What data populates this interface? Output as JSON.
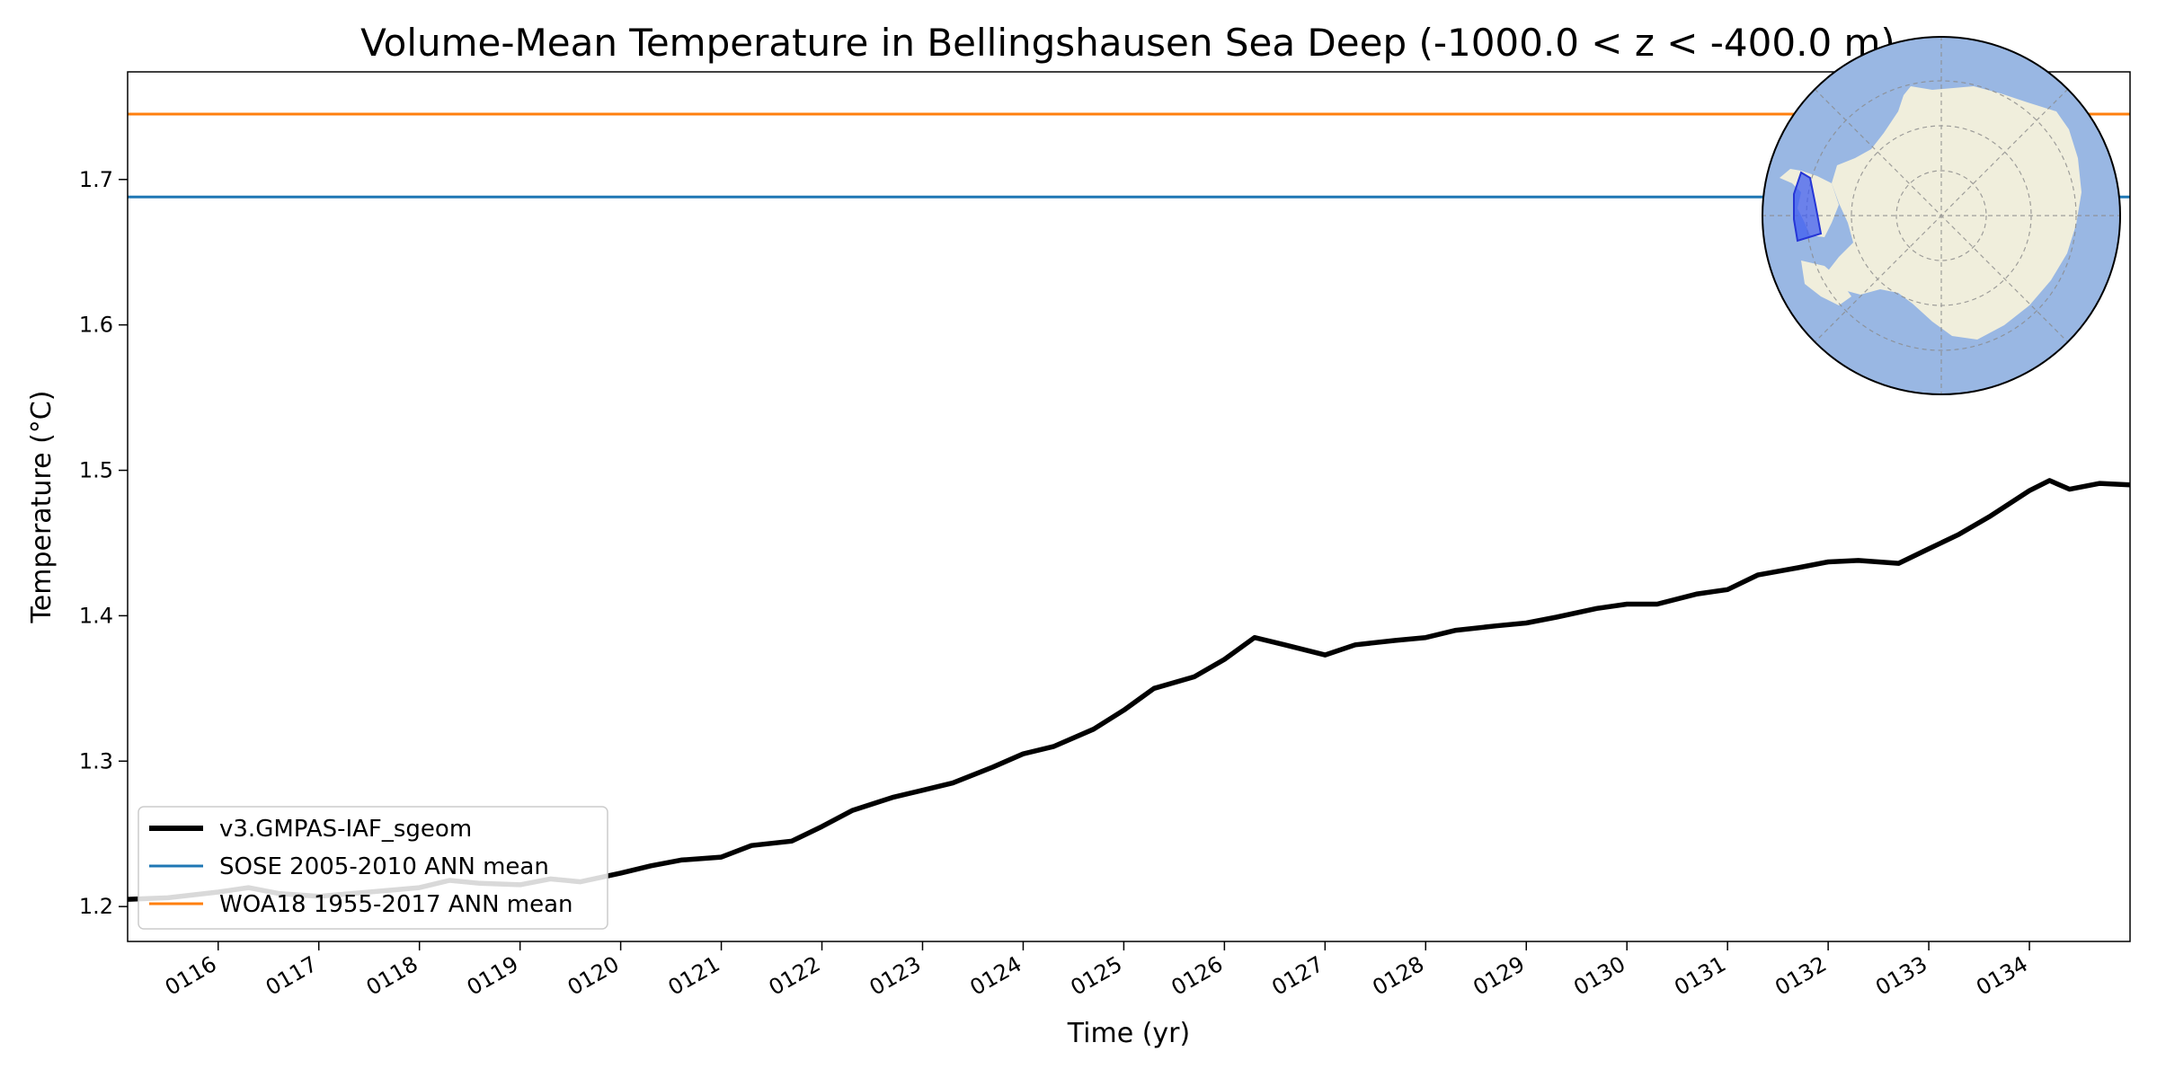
{
  "chart_data": {
    "type": "line",
    "title": "Volume-Mean Temperature in Bellingshausen Sea Deep (-1000.0 < z < -400.0 m)",
    "xlabel": "Time (yr)",
    "ylabel": "Temperature (°C)",
    "xlim": [
      115.1,
      135.0
    ],
    "ylim": [
      1.176,
      1.774
    ],
    "x_ticks": [
      116,
      117,
      118,
      119,
      120,
      121,
      122,
      123,
      124,
      125,
      126,
      127,
      128,
      129,
      130,
      131,
      132,
      133,
      134
    ],
    "x_tick_labels": [
      "0116",
      "0117",
      "0118",
      "0119",
      "0120",
      "0121",
      "0122",
      "0123",
      "0124",
      "0125",
      "0126",
      "0127",
      "0128",
      "0129",
      "0130",
      "0131",
      "0132",
      "0133",
      "0134"
    ],
    "y_ticks": [
      1.2,
      1.3,
      1.4,
      1.5,
      1.6,
      1.7
    ],
    "y_tick_labels": [
      "1.2",
      "1.3",
      "1.4",
      "1.5",
      "1.6",
      "1.7"
    ],
    "grid": false,
    "legend_position": "bottom-left",
    "series": [
      {
        "name": "v3.GMPAS-IAF_sgeom",
        "color": "#000000",
        "x": [
          115.1,
          115.5,
          116.0,
          116.3,
          116.6,
          117.0,
          117.5,
          118.0,
          118.3,
          118.6,
          119.0,
          119.3,
          119.6,
          120.0,
          120.3,
          120.6,
          121.0,
          121.3,
          121.7,
          122.0,
          122.3,
          122.7,
          123.0,
          123.3,
          123.7,
          124.0,
          124.3,
          124.7,
          125.0,
          125.3,
          125.7,
          126.0,
          126.3,
          126.6,
          127.0,
          127.3,
          127.7,
          128.0,
          128.3,
          128.7,
          129.0,
          129.3,
          129.7,
          130.0,
          130.3,
          130.7,
          131.0,
          131.3,
          131.7,
          132.0,
          132.3,
          132.7,
          133.0,
          133.3,
          133.6,
          134.0,
          134.2,
          134.4,
          134.7,
          135.0
        ],
        "values": [
          1.205,
          1.206,
          1.21,
          1.213,
          1.209,
          1.207,
          1.21,
          1.213,
          1.218,
          1.216,
          1.215,
          1.219,
          1.217,
          1.223,
          1.228,
          1.232,
          1.234,
          1.242,
          1.245,
          1.255,
          1.266,
          1.275,
          1.28,
          1.285,
          1.296,
          1.305,
          1.31,
          1.322,
          1.335,
          1.35,
          1.358,
          1.37,
          1.385,
          1.38,
          1.373,
          1.38,
          1.383,
          1.385,
          1.39,
          1.393,
          1.395,
          1.399,
          1.405,
          1.408,
          1.408,
          1.415,
          1.418,
          1.428,
          1.433,
          1.437,
          1.438,
          1.436,
          1.446,
          1.456,
          1.468,
          1.486,
          1.493,
          1.487,
          1.491,
          1.49
        ]
      },
      {
        "name": "SOSE 2005-2010 ANN mean",
        "color": "#1f77b4",
        "type": "hline",
        "value": 1.688
      },
      {
        "name": "WOA18 1955-2017 ANN mean",
        "color": "#ff7f0e",
        "type": "hline",
        "value": 1.745
      }
    ]
  },
  "inset_map": {
    "ocean_color": "#99b7e3",
    "land_color": "#f0eedc",
    "region_color": "#3f5cf0"
  }
}
